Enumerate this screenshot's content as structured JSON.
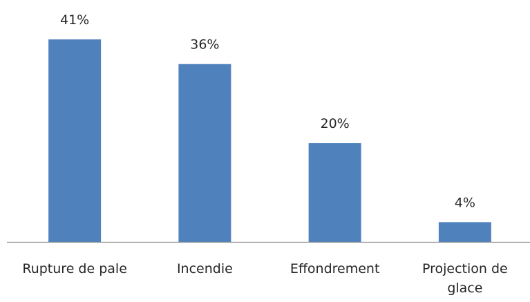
{
  "chart_data": {
    "type": "bar",
    "categories": [
      "Rupture de pale",
      "Incendie",
      "Effondrement",
      "Projection de glace"
    ],
    "values": [
      41,
      36,
      20,
      4
    ],
    "value_labels": [
      "41%",
      "36%",
      "20%",
      "4%"
    ],
    "color": "#4f81bd"
  }
}
